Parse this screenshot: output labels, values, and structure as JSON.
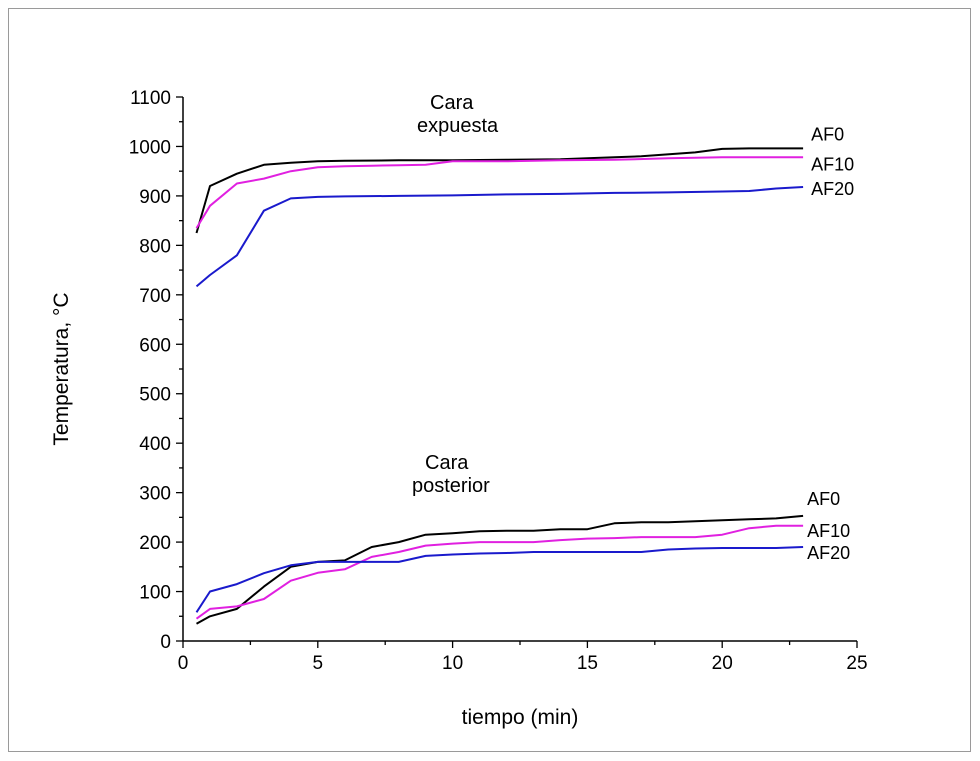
{
  "chart_data": {
    "type": "line",
    "xlabel": "tiempo (min)",
    "ylabel": "Temperatura, °C",
    "xlim": [
      0,
      25
    ],
    "ylim": [
      0,
      1100
    ],
    "xticks": [
      0,
      5,
      10,
      15,
      20,
      25
    ],
    "yticks": [
      0,
      100,
      200,
      300,
      400,
      500,
      600,
      700,
      800,
      900,
      1000,
      1100
    ],
    "grid": false,
    "legend": "none",
    "annotations": [
      {
        "id": "exposed",
        "lines": [
          "Cara",
          "expuesta"
        ]
      },
      {
        "id": "back",
        "lines": [
          "Cara",
          "posterior"
        ]
      }
    ],
    "series": [
      {
        "name": "AF0",
        "group": "expuesta",
        "color": "#000000",
        "x": [
          0.5,
          1,
          2,
          3,
          4,
          5,
          6,
          8,
          10,
          12,
          14,
          16,
          17,
          19,
          20,
          21,
          22,
          23
        ],
        "y": [
          825,
          920,
          945,
          963,
          967,
          970,
          971,
          972,
          972,
          973,
          974,
          978,
          980,
          988,
          995,
          996,
          996,
          996
        ]
      },
      {
        "name": "AF10",
        "group": "expuesta",
        "color": "#e020e0",
        "x": [
          0.5,
          1,
          2,
          3,
          4,
          5,
          6,
          7,
          8,
          9,
          10,
          12,
          14,
          16,
          18,
          20,
          21,
          22,
          23
        ],
        "y": [
          835,
          880,
          925,
          935,
          950,
          958,
          960,
          961,
          962,
          963,
          970,
          970,
          972,
          973,
          976,
          978,
          978,
          978,
          978
        ]
      },
      {
        "name": "AF20",
        "group": "expuesta",
        "color": "#1a1acc",
        "x": [
          0.5,
          1,
          2,
          3,
          4,
          5,
          6,
          8,
          10,
          12,
          14,
          16,
          18,
          20,
          21,
          22,
          23
        ],
        "y": [
          717,
          740,
          780,
          870,
          895,
          898,
          899,
          900,
          901,
          903,
          904,
          906,
          907,
          909,
          910,
          915,
          918
        ]
      },
      {
        "name": "AF0",
        "group": "posterior",
        "color": "#000000",
        "x": [
          0.5,
          1,
          2,
          3,
          4,
          5,
          6,
          7,
          8,
          9,
          10,
          11,
          12,
          13,
          14,
          15,
          16,
          17,
          18,
          19,
          20,
          21,
          22,
          23
        ],
        "y": [
          35,
          50,
          65,
          110,
          150,
          160,
          163,
          190,
          200,
          215,
          218,
          222,
          223,
          223,
          226,
          226,
          238,
          240,
          240,
          242,
          244,
          246,
          248,
          253
        ]
      },
      {
        "name": "AF10",
        "group": "posterior",
        "color": "#e020e0",
        "x": [
          0.5,
          1,
          2,
          3,
          4,
          5,
          6,
          7,
          8,
          9,
          10,
          11,
          12,
          13,
          14,
          15,
          16,
          17,
          18,
          19,
          20,
          21,
          22,
          23
        ],
        "y": [
          45,
          65,
          70,
          85,
          122,
          138,
          145,
          170,
          180,
          193,
          197,
          200,
          200,
          200,
          204,
          207,
          208,
          210,
          210,
          210,
          215,
          228,
          233,
          233
        ]
      },
      {
        "name": "AF20",
        "group": "posterior",
        "color": "#1a1acc",
        "x": [
          0.5,
          1,
          2,
          3,
          4,
          5,
          6,
          7,
          8,
          9,
          10,
          11,
          12,
          13,
          14,
          15,
          16,
          17,
          18,
          19,
          20,
          21,
          22,
          23
        ],
        "y": [
          58,
          100,
          115,
          137,
          153,
          160,
          160,
          160,
          160,
          172,
          175,
          177,
          178,
          180,
          180,
          180,
          180,
          180,
          185,
          187,
          188,
          188,
          188,
          190
        ]
      }
    ],
    "end_labels": [
      {
        "text": "AF0",
        "series": 0
      },
      {
        "text": "AF10",
        "series": 1
      },
      {
        "text": "AF20",
        "series": 2
      },
      {
        "text": "AF0",
        "series": 3
      },
      {
        "text": "AF10",
        "series": 4
      },
      {
        "text": "AF20",
        "series": 5
      }
    ]
  }
}
